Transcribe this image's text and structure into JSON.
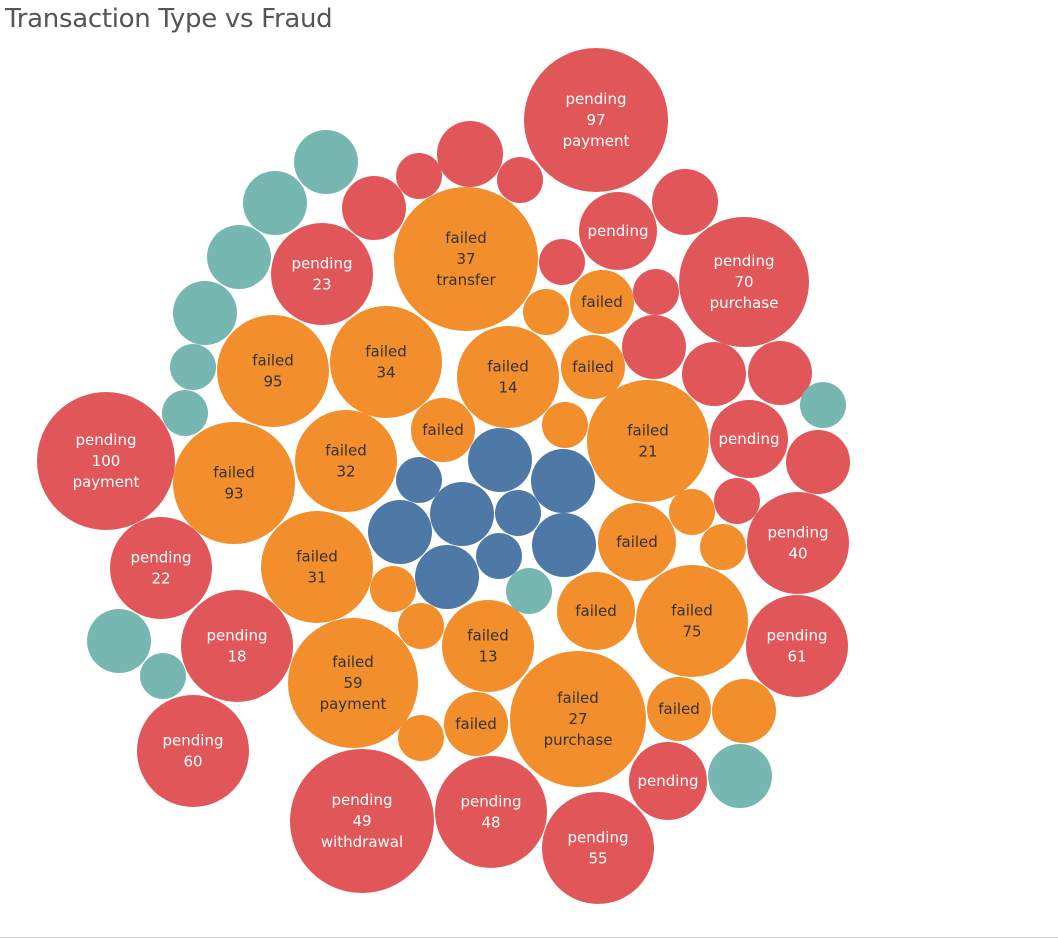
{
  "title": "Transaction Type vs Fraud",
  "colors": {
    "pending": "#e15759",
    "failed": "#f28e2b",
    "success": "#4e79a7",
    "teal": "#76b7b2",
    "label_on_red": "#ffffff",
    "label_on_orange": "#333333"
  },
  "chart_data": {
    "type": "packed-bubble",
    "title": "Transaction Type vs Fraud",
    "bubbles": [
      {
        "group": "pending",
        "lines": [
          "pending",
          "97",
          "payment"
        ]
      },
      {
        "group": "pending",
        "lines": [
          "pending",
          "100",
          "payment"
        ]
      },
      {
        "group": "pending",
        "lines": [
          "pending",
          "70",
          "purchase"
        ]
      },
      {
        "group": "pending",
        "lines": [
          "pending",
          "49",
          "withdrawal"
        ]
      },
      {
        "group": "pending",
        "lines": [
          "pending",
          "23"
        ]
      },
      {
        "group": "pending",
        "lines": [
          "pending",
          "22"
        ]
      },
      {
        "group": "pending",
        "lines": [
          "pending",
          "18"
        ]
      },
      {
        "group": "pending",
        "lines": [
          "pending",
          "60"
        ]
      },
      {
        "group": "pending",
        "lines": [
          "pending",
          "48"
        ]
      },
      {
        "group": "pending",
        "lines": [
          "pending",
          "55"
        ]
      },
      {
        "group": "pending",
        "lines": [
          "pending",
          "61"
        ]
      },
      {
        "group": "pending",
        "lines": [
          "pending",
          "40"
        ]
      },
      {
        "group": "pending",
        "lines": [
          "pending"
        ]
      },
      {
        "group": "pending",
        "lines": [
          "pending"
        ]
      },
      {
        "group": "pending",
        "lines": [
          "pending"
        ]
      },
      {
        "group": "pending",
        "lines": []
      },
      {
        "group": "pending",
        "lines": []
      },
      {
        "group": "pending",
        "lines": []
      },
      {
        "group": "pending",
        "lines": []
      },
      {
        "group": "pending",
        "lines": []
      },
      {
        "group": "pending",
        "lines": []
      },
      {
        "group": "pending",
        "lines": []
      },
      {
        "group": "pending",
        "lines": []
      },
      {
        "group": "pending",
        "lines": []
      },
      {
        "group": "pending",
        "lines": []
      },
      {
        "group": "pending",
        "lines": []
      },
      {
        "group": "pending",
        "lines": []
      },
      {
        "group": "failed",
        "lines": [
          "failed",
          "37",
          "transfer"
        ]
      },
      {
        "group": "failed",
        "lines": [
          "failed",
          "59",
          "payment"
        ]
      },
      {
        "group": "failed",
        "lines": [
          "failed",
          "27",
          "purchase"
        ]
      },
      {
        "group": "failed",
        "lines": [
          "failed",
          "95"
        ]
      },
      {
        "group": "failed",
        "lines": [
          "failed",
          "34"
        ]
      },
      {
        "group": "failed",
        "lines": [
          "failed",
          "14"
        ]
      },
      {
        "group": "failed",
        "lines": [
          "failed",
          "93"
        ]
      },
      {
        "group": "failed",
        "lines": [
          "failed",
          "32"
        ]
      },
      {
        "group": "failed",
        "lines": [
          "failed",
          "21"
        ]
      },
      {
        "group": "failed",
        "lines": [
          "failed",
          "31"
        ]
      },
      {
        "group": "failed",
        "lines": [
          "failed",
          "13"
        ]
      },
      {
        "group": "failed",
        "lines": [
          "failed",
          "75"
        ]
      },
      {
        "group": "failed",
        "lines": [
          "failed"
        ]
      },
      {
        "group": "failed",
        "lines": [
          "failed"
        ]
      },
      {
        "group": "failed",
        "lines": [
          "failed"
        ]
      },
      {
        "group": "failed",
        "lines": [
          "failed"
        ]
      },
      {
        "group": "failed",
        "lines": [
          "failed"
        ]
      },
      {
        "group": "failed",
        "lines": [
          "failed"
        ]
      },
      {
        "group": "failed",
        "lines": [
          "failed"
        ]
      },
      {
        "group": "failed",
        "lines": []
      },
      {
        "group": "failed",
        "lines": []
      },
      {
        "group": "failed",
        "lines": []
      },
      {
        "group": "failed",
        "lines": []
      },
      {
        "group": "failed",
        "lines": []
      },
      {
        "group": "failed",
        "lines": []
      },
      {
        "group": "failed",
        "lines": []
      },
      {
        "group": "failed",
        "lines": []
      },
      {
        "group": "success",
        "lines": []
      },
      {
        "group": "success",
        "lines": []
      },
      {
        "group": "success",
        "lines": []
      },
      {
        "group": "success",
        "lines": []
      },
      {
        "group": "success",
        "lines": []
      },
      {
        "group": "success",
        "lines": []
      },
      {
        "group": "success",
        "lines": []
      },
      {
        "group": "success",
        "lines": []
      },
      {
        "group": "success",
        "lines": []
      },
      {
        "group": "other",
        "lines": []
      },
      {
        "group": "other",
        "lines": []
      },
      {
        "group": "other",
        "lines": []
      },
      {
        "group": "other",
        "lines": []
      },
      {
        "group": "other",
        "lines": []
      },
      {
        "group": "other",
        "lines": []
      },
      {
        "group": "other",
        "lines": []
      },
      {
        "group": "other",
        "lines": []
      },
      {
        "group": "other",
        "lines": []
      },
      {
        "group": "other",
        "lines": []
      },
      {
        "group": "other",
        "lines": []
      }
    ]
  }
}
